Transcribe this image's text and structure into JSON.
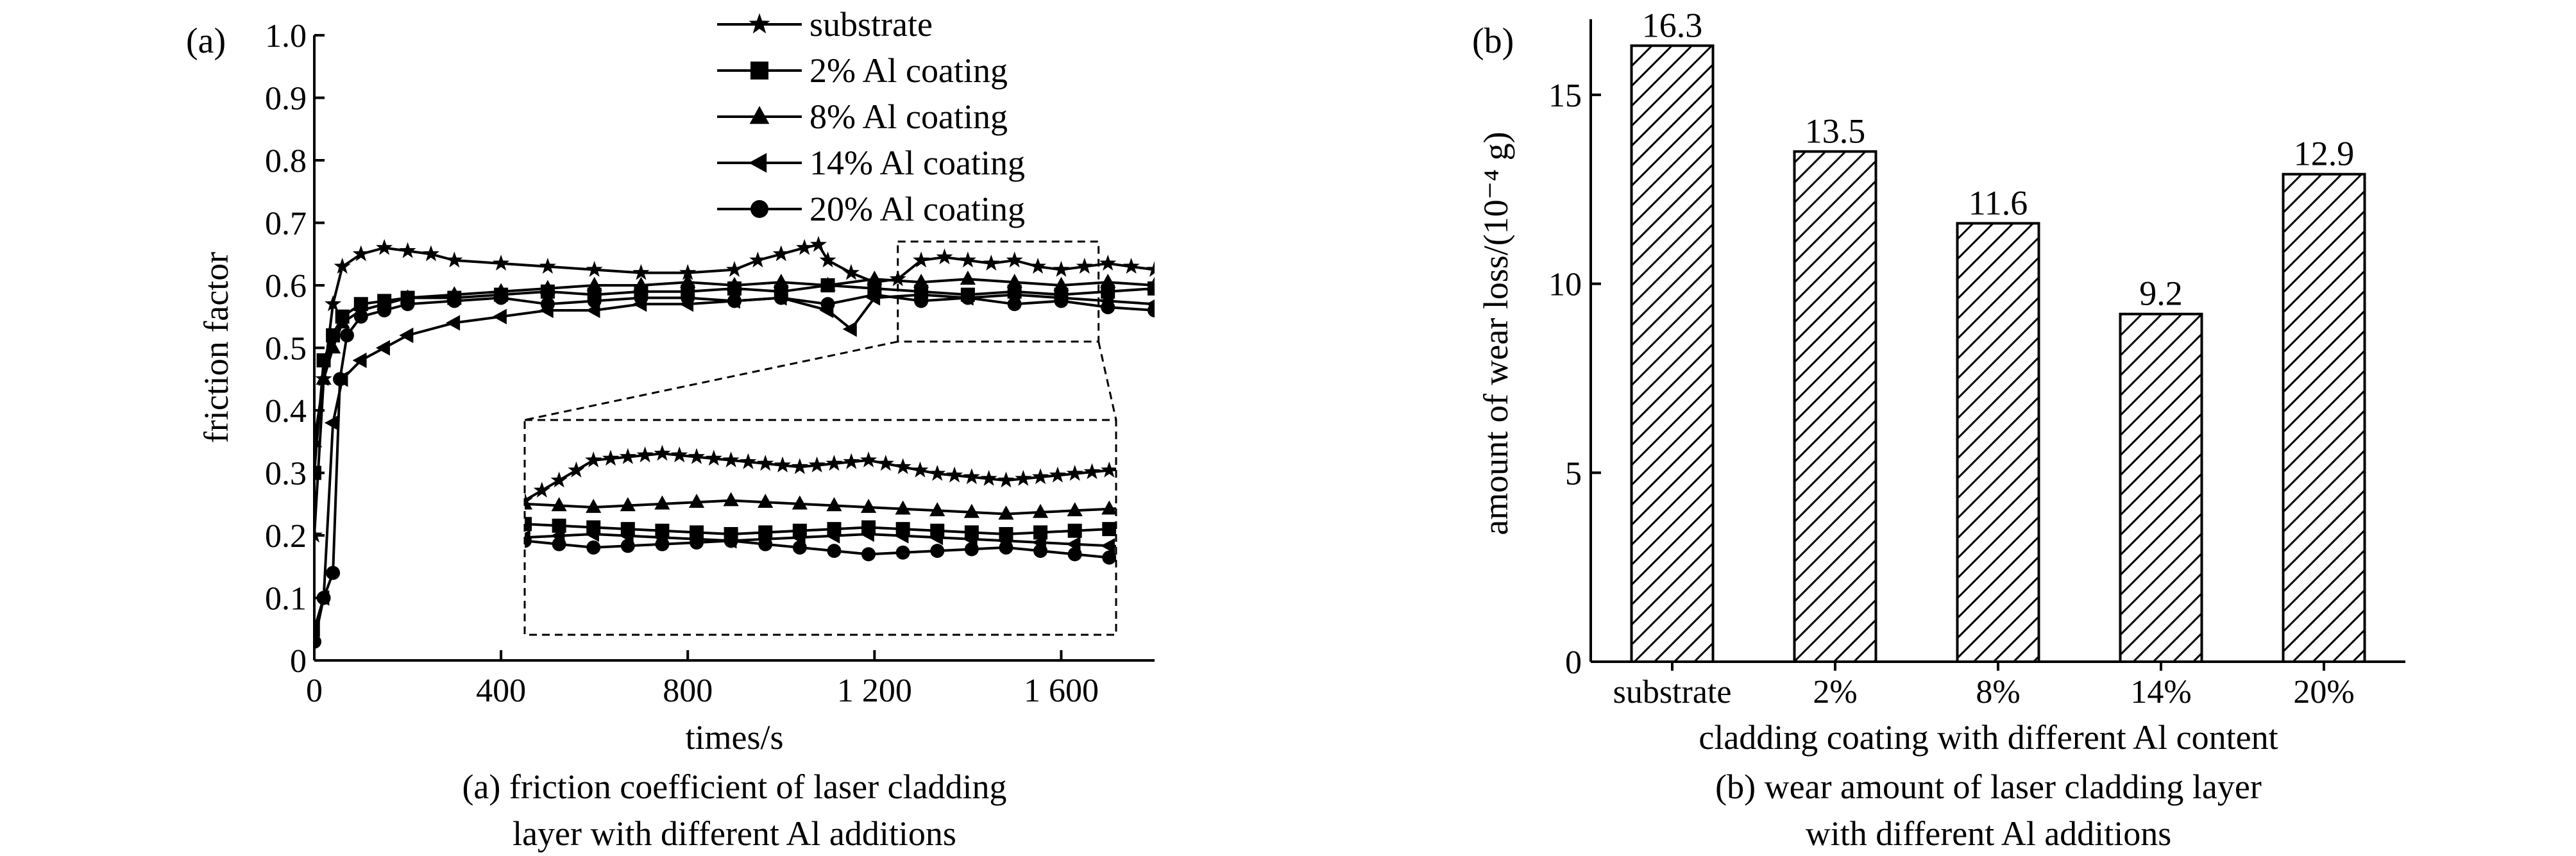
{
  "chart_data": [
    {
      "panel_label": "(a)",
      "type": "line",
      "ylabel": "friction factor",
      "xlabel": "times/s",
      "caption_lines": [
        "(a) friction coefficient of laser cladding",
        "layer with different Al additions"
      ],
      "xlim": [
        0,
        1800
      ],
      "ylim": [
        0,
        1.0
      ],
      "x_ticks": [
        0,
        400,
        800,
        1200,
        1600
      ],
      "x_tick_labels": [
        "0",
        "400",
        "800",
        "1 200",
        "1 600"
      ],
      "y_ticks": [
        0,
        0.1,
        0.2,
        0.3,
        0.4,
        0.5,
        0.6,
        0.7,
        0.8,
        0.9,
        1.0
      ],
      "y_tick_labels": [
        "0",
        "0.1",
        "0.2",
        "0.3",
        "0.4",
        "0.5",
        "0.6",
        "0.7",
        "0.8",
        "0.9",
        "1.0"
      ],
      "legend_position": "top-center",
      "zoom_box": {
        "x": [
          1250,
          1680
        ],
        "y": [
          0.51,
          0.67
        ]
      },
      "series": [
        {
          "name": "substrate",
          "marker": "star",
          "x": [
            0,
            20,
            40,
            60,
            100,
            150,
            200,
            250,
            300,
            400,
            500,
            600,
            700,
            800,
            900,
            950,
            1000,
            1050,
            1080,
            1100,
            1150,
            1200,
            1250,
            1300,
            1350,
            1400,
            1450,
            1500,
            1550,
            1600,
            1650,
            1700,
            1750,
            1800
          ],
          "y": [
            0.2,
            0.45,
            0.57,
            0.63,
            0.65,
            0.66,
            0.655,
            0.65,
            0.64,
            0.635,
            0.63,
            0.625,
            0.62,
            0.62,
            0.625,
            0.64,
            0.65,
            0.66,
            0.665,
            0.64,
            0.62,
            0.605,
            0.61,
            0.64,
            0.645,
            0.64,
            0.635,
            0.64,
            0.63,
            0.625,
            0.63,
            0.635,
            0.63,
            0.625
          ]
        },
        {
          "name": "2% Al coating",
          "marker": "square",
          "x": [
            0,
            20,
            40,
            60,
            100,
            150,
            200,
            300,
            400,
            500,
            600,
            700,
            800,
            900,
            1000,
            1100,
            1200,
            1300,
            1400,
            1500,
            1600,
            1700,
            1800
          ],
          "y": [
            0.3,
            0.48,
            0.52,
            0.55,
            0.57,
            0.575,
            0.58,
            0.58,
            0.585,
            0.59,
            0.585,
            0.59,
            0.59,
            0.595,
            0.59,
            0.6,
            0.595,
            0.59,
            0.585,
            0.59,
            0.585,
            0.59,
            0.595
          ]
        },
        {
          "name": "8% Al coating",
          "marker": "triangle",
          "x": [
            0,
            20,
            40,
            60,
            100,
            150,
            200,
            300,
            400,
            500,
            600,
            700,
            800,
            900,
            1000,
            1100,
            1200,
            1300,
            1400,
            1500,
            1600,
            1700,
            1800
          ],
          "y": [
            0.35,
            0.45,
            0.5,
            0.54,
            0.56,
            0.57,
            0.58,
            0.585,
            0.59,
            0.595,
            0.6,
            0.6,
            0.605,
            0.6,
            0.605,
            0.6,
            0.61,
            0.605,
            0.61,
            0.605,
            0.6,
            0.605,
            0.6
          ]
        },
        {
          "name": "14% Al coating",
          "marker": "left-triangle",
          "x": [
            0,
            20,
            40,
            60,
            100,
            150,
            200,
            300,
            400,
            500,
            600,
            700,
            800,
            900,
            1000,
            1100,
            1150,
            1200,
            1300,
            1400,
            1500,
            1600,
            1700,
            1800
          ],
          "y": [
            0.05,
            0.1,
            0.38,
            0.45,
            0.48,
            0.5,
            0.52,
            0.54,
            0.55,
            0.56,
            0.56,
            0.57,
            0.57,
            0.575,
            0.58,
            0.56,
            0.53,
            0.58,
            0.585,
            0.58,
            0.585,
            0.58,
            0.575,
            0.57
          ]
        },
        {
          "name": "20% Al coating",
          "marker": "circle",
          "x": [
            0,
            20,
            40,
            55,
            70,
            100,
            150,
            200,
            300,
            400,
            500,
            600,
            700,
            800,
            900,
            1000,
            1100,
            1200,
            1300,
            1400,
            1500,
            1600,
            1700,
            1800
          ],
          "y": [
            0.03,
            0.1,
            0.14,
            0.45,
            0.52,
            0.55,
            0.56,
            0.57,
            0.575,
            0.58,
            0.57,
            0.575,
            0.58,
            0.58,
            0.575,
            0.58,
            0.57,
            0.585,
            0.575,
            0.58,
            0.57,
            0.575,
            0.565,
            0.56
          ]
        }
      ]
    },
    {
      "panel_label": "(b)",
      "type": "bar",
      "ylabel": "amount of wear loss/(10⁻⁴ g)",
      "xlabel": "cladding coating with different Al content",
      "caption_lines": [
        "(b) wear amount of laser cladding layer",
        "with different Al additions"
      ],
      "categories": [
        "substrate",
        "2%",
        "8%",
        "14%",
        "20%"
      ],
      "values": [
        16.3,
        13.5,
        11.6,
        9.2,
        12.9
      ],
      "value_labels": [
        "16.3",
        "13.5",
        "11.6",
        "9.2",
        "12.9"
      ],
      "ylim": [
        0,
        17
      ],
      "y_ticks": [
        0,
        5,
        10,
        15
      ],
      "y_tick_labels": [
        "0",
        "5",
        "10",
        "15"
      ],
      "bar_fill": "diagonal-hatch"
    }
  ]
}
